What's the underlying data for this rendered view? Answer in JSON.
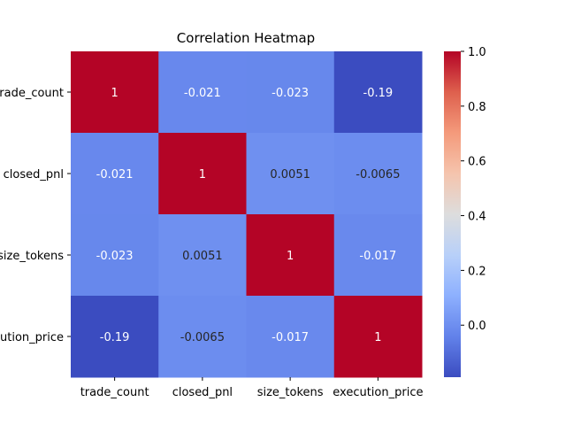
{
  "chart_data": {
    "type": "heatmap",
    "title": "Correlation Heatmap",
    "xlabel": "",
    "ylabel": "",
    "row_labels": [
      "trade_count",
      "closed_pnl",
      "size_tokens",
      "execution_price"
    ],
    "col_labels": [
      "trade_count",
      "closed_pnl",
      "size_tokens",
      "execution_price"
    ],
    "values": [
      [
        1,
        -0.021,
        -0.023,
        -0.19
      ],
      [
        -0.021,
        1,
        0.0051,
        -0.0065
      ],
      [
        -0.023,
        0.0051,
        1,
        -0.017
      ],
      [
        -0.19,
        -0.0065,
        -0.017,
        1
      ]
    ],
    "cell_labels": [
      [
        "1",
        "-0.021",
        "-0.023",
        "-0.19"
      ],
      [
        "-0.021",
        "1",
        "0.0051",
        "-0.0065"
      ],
      [
        "-0.023",
        "0.0051",
        "1",
        "-0.017"
      ],
      [
        "-0.19",
        "-0.0065",
        "-0.017",
        "1"
      ]
    ],
    "colormap": "coolwarm",
    "vmin": -0.19,
    "vmax": 1.0,
    "colorbar_ticks": [
      "0.0",
      "0.2",
      "0.4",
      "0.6",
      "0.8",
      "1.0"
    ],
    "grid": false
  }
}
